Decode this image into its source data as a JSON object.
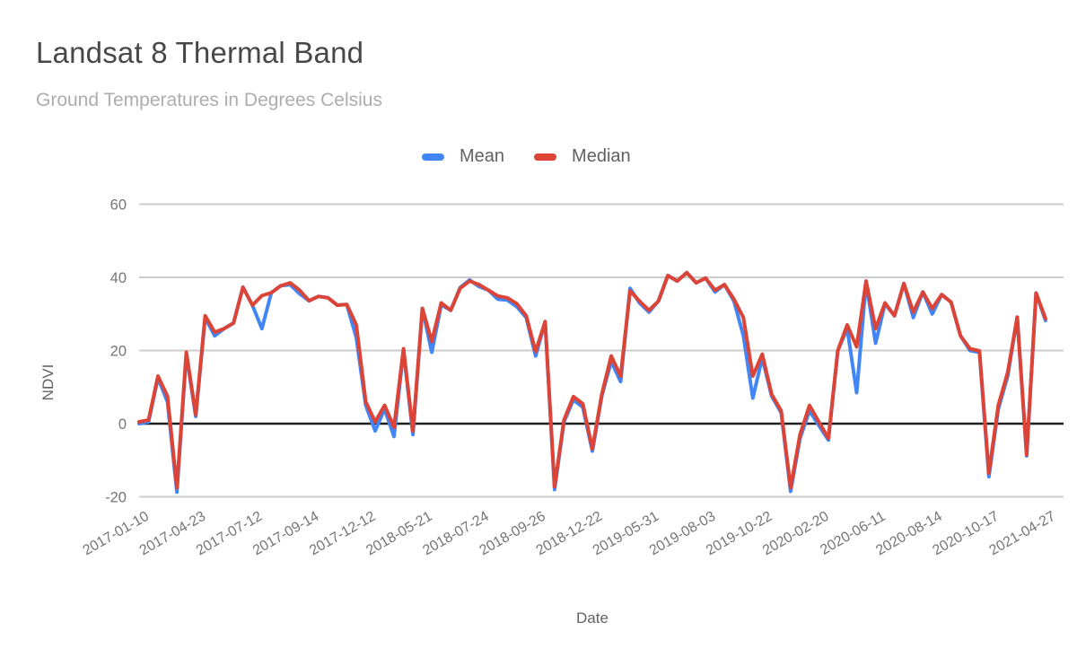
{
  "header": {
    "title": "Landsat 8 Thermal Band",
    "subtitle": "Ground Temperatures in Degrees Celsius"
  },
  "legend": [
    {
      "label": "Mean",
      "color": "#4285F4"
    },
    {
      "label": "Median",
      "color": "#DB4437"
    }
  ],
  "axes": {
    "y_title": "NDVI",
    "x_title": "Date",
    "y_ticks": [
      60,
      40,
      20,
      0,
      -20
    ],
    "grid_color": "#cccccc",
    "zero_line_color": "#1f1f1f",
    "tick_label_color": "#757575"
  },
  "chart_data": {
    "type": "line",
    "title": "Landsat 8 Thermal Band",
    "subtitle": "Ground Temperatures in Degrees Celsius",
    "xlabel": "Date",
    "ylabel": "NDVI",
    "ylim": [
      -22,
      62
    ],
    "grid": true,
    "legend_position": "top-center",
    "x_tick_every": 6,
    "x_labels": [
      "2017-01-10",
      "2017-04-23",
      "2017-07-12",
      "2017-09-14",
      "2017-12-12",
      "2018-05-21",
      "2018-07-24",
      "2018-09-26",
      "2018-12-22",
      "2019-05-31",
      "2019-08-03",
      "2019-10-22",
      "2020-02-20",
      "2020-06-11",
      "2020-08-14",
      "2020-10-17",
      "2021-04-27"
    ],
    "series": [
      {
        "name": "Mean",
        "color": "#4285F4",
        "values": [
          0,
          0.5,
          12.5,
          6,
          -18.7,
          19,
          2,
          29,
          24,
          26,
          27.5,
          37.3,
          32.4,
          26,
          35.8,
          37.7,
          38,
          35.5,
          33.6,
          34.8,
          34.4,
          32.4,
          32.6,
          23.5,
          5,
          -2,
          4,
          -3.5,
          20,
          -3,
          31.5,
          19.5,
          32.5,
          31,
          37.2,
          39.3,
          37.5,
          36.5,
          34,
          33.8,
          32,
          29,
          18.5,
          27.9,
          -18,
          0.5,
          6.5,
          4.5,
          -7.5,
          7.5,
          17,
          11.5,
          37,
          33,
          30.5,
          33.5,
          40.5,
          39,
          41.3,
          38.5,
          39.8,
          36,
          38,
          33.5,
          24,
          7,
          18,
          7.5,
          3,
          -18.5,
          -4,
          3.5,
          -0.5,
          -4.5,
          20,
          26,
          8.5,
          38.7,
          22,
          32.8,
          29.5,
          38.3,
          29,
          36,
          30,
          35.3,
          33.2,
          24,
          20,
          19.5,
          -14.5,
          4,
          13,
          29.1,
          -8.8,
          35.7,
          28.2
        ]
      },
      {
        "name": "Median",
        "color": "#DB4437",
        "values": [
          0.5,
          1,
          13,
          7.5,
          -17.5,
          19.5,
          2.5,
          29.5,
          25,
          26,
          27.5,
          37.3,
          32.4,
          35,
          35.8,
          37.7,
          38.5,
          36.5,
          33.6,
          34.8,
          34.4,
          32.4,
          32.6,
          27,
          6,
          0.5,
          5,
          -1,
          20.5,
          -2,
          31.5,
          22.5,
          33,
          31,
          37,
          39,
          38,
          36.5,
          34.9,
          34.4,
          32.8,
          29.5,
          19.7,
          27.9,
          -17.2,
          1,
          7.4,
          5.4,
          -6.9,
          8,
          18.5,
          13,
          36.3,
          33.5,
          31,
          33.5,
          40.5,
          39,
          41.3,
          38.5,
          39.8,
          36.5,
          38,
          34,
          29,
          13,
          19,
          8,
          3.5,
          -17.5,
          -3,
          5,
          0.5,
          -4,
          20,
          27,
          21,
          39,
          26,
          33,
          29.5,
          38.3,
          30.5,
          36,
          31.5,
          35.3,
          33.2,
          24,
          20.5,
          19.9,
          -13.5,
          5,
          14,
          29.1,
          -8.5,
          35.7,
          28.7
        ]
      }
    ]
  }
}
